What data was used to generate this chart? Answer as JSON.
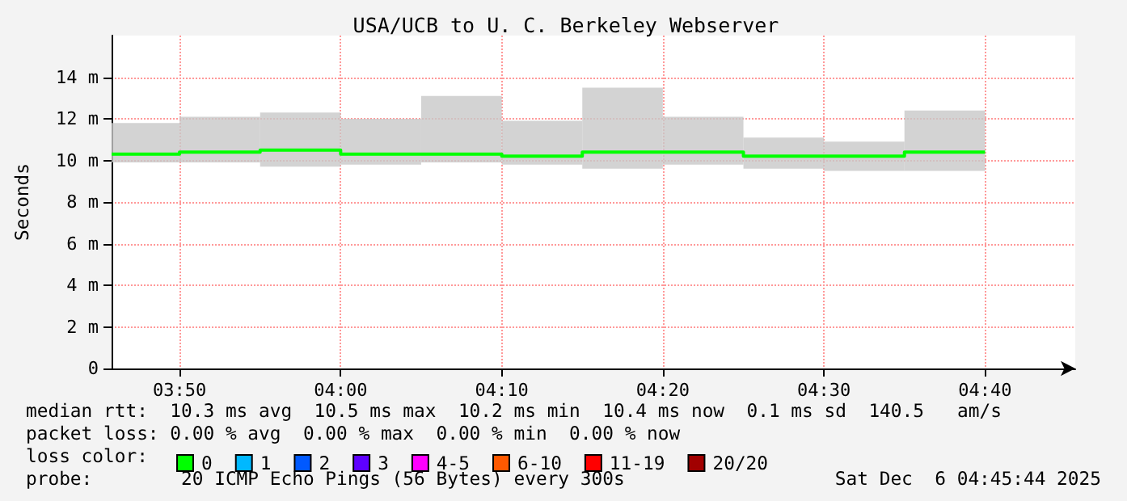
{
  "chart_data": {
    "type": "step",
    "title": "USA/UCB to U. C. Berkeley Webserver",
    "ylabel": "Seconds",
    "x": [
      3.763,
      3.8333,
      3.9167,
      4.0,
      4.0833,
      4.1667,
      4.25,
      4.3333,
      4.4167,
      4.5,
      4.5833,
      4.6667
    ],
    "xlim": [
      3.763,
      4.76
    ],
    "xticks": [
      {
        "value": 3.8333,
        "label": "03:50"
      },
      {
        "value": 4.0,
        "label": "04:00"
      },
      {
        "value": 4.1667,
        "label": "04:10"
      },
      {
        "value": 4.3333,
        "label": "04:20"
      },
      {
        "value": 4.5,
        "label": "04:30"
      },
      {
        "value": 4.6667,
        "label": "04:40"
      }
    ],
    "ylim": [
      0,
      16
    ],
    "yticks": [
      0,
      {
        "value": 2,
        "label": "2 m"
      },
      {
        "value": 4,
        "label": "4 m"
      },
      {
        "value": 6,
        "label": "6 m"
      },
      {
        "value": 8,
        "label": "8 m"
      },
      {
        "value": 10,
        "label": "10 m"
      },
      {
        "value": 12,
        "label": "12 m"
      },
      {
        "value": 14,
        "label": "14 m"
      }
    ],
    "series": [
      {
        "name": "0",
        "color": "#00ff00",
        "values": [
          10.3,
          10.3,
          10.4,
          10.5,
          10.3,
          10.3,
          10.2,
          10.4,
          10.4,
          10.2,
          10.2,
          10.4
        ],
        "lower": [
          9.9,
          9.9,
          9.9,
          9.7,
          9.8,
          9.9,
          9.8,
          9.6,
          9.8,
          9.6,
          9.5,
          9.5
        ],
        "upper": [
          11.8,
          11.8,
          12.1,
          12.3,
          12.0,
          13.1,
          11.9,
          13.5,
          12.1,
          11.1,
          10.9,
          12.4
        ]
      },
      {
        "name": "1",
        "color": "#00b8ff",
        "values": [
          null,
          null,
          null,
          null,
          null,
          null,
          null,
          null,
          null,
          null,
          null,
          null
        ]
      },
      {
        "name": "2",
        "color": "#0059ff",
        "values": [
          null,
          null,
          null,
          null,
          null,
          null,
          null,
          null,
          null,
          null,
          null,
          null
        ]
      },
      {
        "name": "3",
        "color": "#5e00ff",
        "values": [
          null,
          null,
          null,
          null,
          null,
          null,
          null,
          null,
          null,
          null,
          null,
          null
        ]
      },
      {
        "name": "4-5",
        "color": "#ff00ff",
        "values": [
          null,
          null,
          null,
          null,
          null,
          null,
          null,
          null,
          null,
          null,
          null,
          null
        ]
      },
      {
        "name": "6-10",
        "color": "#ff5900",
        "values": [
          null,
          null,
          null,
          null,
          null,
          null,
          null,
          null,
          null,
          null,
          null,
          null
        ]
      },
      {
        "name": "11-19",
        "color": "#ff0000",
        "values": [
          null,
          null,
          null,
          null,
          null,
          null,
          null,
          null,
          null,
          null,
          null,
          null
        ]
      },
      {
        "name": "20/20",
        "color": "#a10000",
        "values": [
          null,
          null,
          null,
          null,
          null,
          null,
          null,
          null,
          null,
          null,
          null,
          null
        ]
      }
    ],
    "legend": "bottom",
    "legend_title": "loss color:",
    "grid": true,
    "marker": "none",
    "line_style": "solid",
    "annotations": [
      "median rtt:  10.3 ms avg  10.5 ms max  10.2 ms min  10.4 ms now  0.1 ms sd  140.5   am/s",
      "packet loss: 0.00 % avg  0.00 % max  0.00 % min  0.00 % now",
      "probe:        20 ICMP Echo Pings (56 Bytes) every 300s",
      "Sat Dec  6 04:45:44 2025"
    ]
  }
}
